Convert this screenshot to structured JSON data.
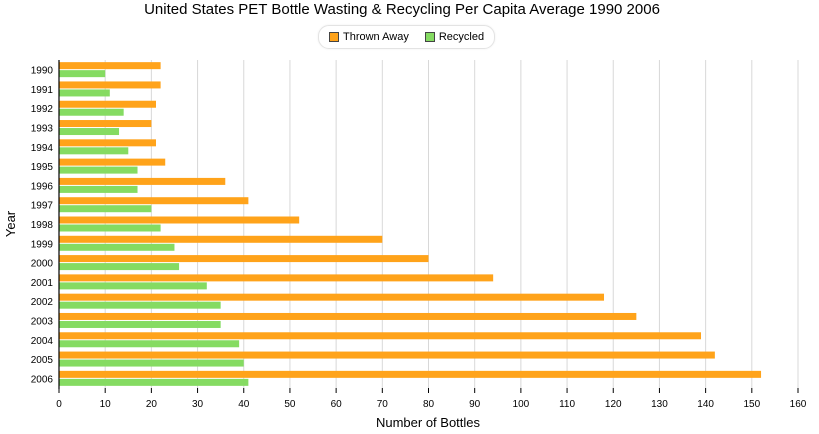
{
  "chart_data": {
    "type": "bar",
    "orientation": "horizontal",
    "title": "United States PET Bottle Wasting & Recycling Per Capita Average 1990 2006",
    "xlabel": "Number of Bottles",
    "ylabel": "Year",
    "xlim": [
      0,
      160
    ],
    "xticks": [
      "0",
      "10",
      "20",
      "30",
      "40",
      "50",
      "60",
      "70",
      "80",
      "90",
      "100",
      "110",
      "120",
      "130",
      "140",
      "150",
      "160"
    ],
    "grid": true,
    "legend_position": "top-center",
    "categories": [
      "1990",
      "1991",
      "1992",
      "1993",
      "1994",
      "1995",
      "1996",
      "1997",
      "1998",
      "1999",
      "2000",
      "2001",
      "2002",
      "2003",
      "2004",
      "2005",
      "2006"
    ],
    "series": [
      {
        "name": "Thrown Away",
        "color": "#ffa31a",
        "values": [
          22,
          22,
          21,
          20,
          21,
          23,
          36,
          41,
          52,
          70,
          80,
          94,
          118,
          125,
          139,
          142,
          152
        ]
      },
      {
        "name": "Recycled",
        "color": "#85db62",
        "values": [
          10,
          11,
          14,
          13,
          15,
          17,
          17,
          20,
          22,
          25,
          26,
          32,
          35,
          35,
          39,
          40,
          41
        ]
      }
    ]
  }
}
